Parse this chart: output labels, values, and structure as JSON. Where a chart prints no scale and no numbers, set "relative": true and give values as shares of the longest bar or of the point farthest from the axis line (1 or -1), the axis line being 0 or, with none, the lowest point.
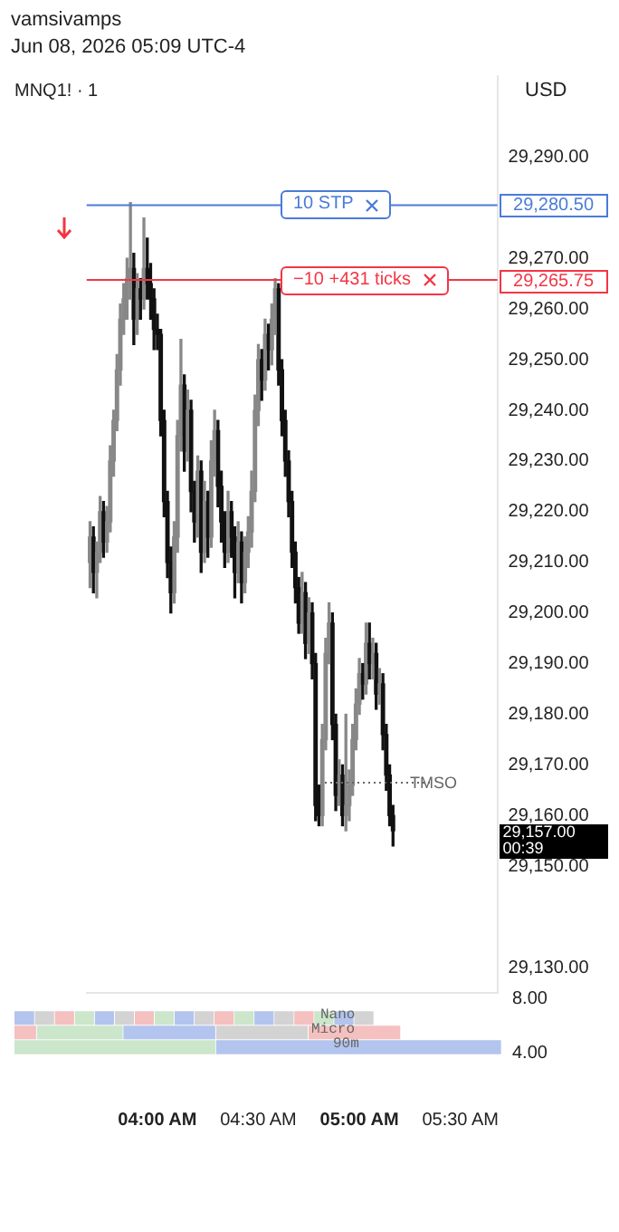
{
  "chart_data": [
    {
      "type": "candlestick",
      "title": "vamsivamps",
      "subtitle": "Jun 08, 2026 05:09 UTC-4",
      "ylabel": "USD",
      "annotations": [
        "MNQ1! · 1",
        "29,280.50",
        "29,265.75",
        "29,157.00",
        "00:39"
      ],
      "x": [
        "2026-06-08T03:40",
        "2026-06-08T03:41",
        "2026-06-08T03:42",
        "2026-06-08T03:43",
        "2026-06-08T03:44",
        "2026-06-08T03:45",
        "2026-06-08T03:46",
        "2026-06-08T03:47",
        "2026-06-08T03:48",
        "2026-06-08T03:49",
        "2026-06-08T03:50",
        "2026-06-08T03:51",
        "2026-06-08T03:52",
        "2026-06-08T03:53",
        "2026-06-08T03:54",
        "2026-06-08T03:55",
        "2026-06-08T03:56",
        "2026-06-08T03:57",
        "2026-06-08T03:58",
        "2026-06-08T03:59",
        "2026-06-08T04:00",
        "2026-06-08T04:01",
        "2026-06-08T04:02",
        "2026-06-08T04:03",
        "2026-06-08T04:04",
        "2026-06-08T04:05",
        "2026-06-08T04:06",
        "2026-06-08T04:07",
        "2026-06-08T04:08",
        "2026-06-08T04:09",
        "2026-06-08T04:10",
        "2026-06-08T04:11",
        "2026-06-08T04:12",
        "2026-06-08T04:13",
        "2026-06-08T04:14",
        "2026-06-08T04:15",
        "2026-06-08T04:16",
        "2026-06-08T04:17",
        "2026-06-08T04:18",
        "2026-06-08T04:19",
        "2026-06-08T04:20",
        "2026-06-08T04:21",
        "2026-06-08T04:22",
        "2026-06-08T04:23",
        "2026-06-08T04:24",
        "2026-06-08T04:25",
        "2026-06-08T04:26",
        "2026-06-08T04:27",
        "2026-06-08T04:28",
        "2026-06-08T04:29",
        "2026-06-08T04:30",
        "2026-06-08T04:31",
        "2026-06-08T04:32",
        "2026-06-08T04:33",
        "2026-06-08T04:34",
        "2026-06-08T04:35",
        "2026-06-08T04:36",
        "2026-06-08T04:37",
        "2026-06-08T04:38",
        "2026-06-08T04:39",
        "2026-06-08T04:40",
        "2026-06-08T04:41",
        "2026-06-08T04:42",
        "2026-06-08T04:43",
        "2026-06-08T04:44",
        "2026-06-08T04:45",
        "2026-06-08T04:46",
        "2026-06-08T04:47",
        "2026-06-08T04:48",
        "2026-06-08T04:49",
        "2026-06-08T04:50",
        "2026-06-08T04:51",
        "2026-06-08T04:52",
        "2026-06-08T04:53",
        "2026-06-08T04:54",
        "2026-06-08T04:55",
        "2026-06-08T04:56",
        "2026-06-08T04:57",
        "2026-06-08T04:58",
        "2026-06-08T04:59",
        "2026-06-08T05:00",
        "2026-06-08T05:01",
        "2026-06-08T05:02",
        "2026-06-08T05:03",
        "2026-06-08T05:04",
        "2026-06-08T05:05",
        "2026-06-08T05:06",
        "2026-06-08T05:07",
        "2026-06-08T05:08",
        "2026-06-08T05:09",
        "2026-06-08T05:10"
      ],
      "ohlc": [
        [
          29210,
          29218,
          29205,
          29215
        ],
        [
          29215,
          29217,
          29204,
          29208
        ],
        [
          29208,
          29214,
          29203,
          29212
        ],
        [
          29212,
          29223,
          29210,
          29220
        ],
        [
          29220,
          29222,
          29211,
          29214
        ],
        [
          29214,
          29221,
          29212,
          29218
        ],
        [
          29218,
          29233,
          29216,
          29230
        ],
        [
          29230,
          29240,
          29227,
          29238
        ],
        [
          29238,
          29251,
          29236,
          29248
        ],
        [
          29248,
          29261,
          29245,
          29258
        ],
        [
          29258,
          29265,
          29255,
          29262
        ],
        [
          29262,
          29270,
          29258,
          29266
        ],
        [
          29266,
          29281,
          29262,
          29268
        ],
        [
          29268,
          29271,
          29253,
          29258
        ],
        [
          29258,
          29267,
          29255,
          29264
        ],
        [
          29264,
          29266,
          29258,
          29262
        ],
        [
          29262,
          29278,
          29260,
          29268
        ],
        [
          29268,
          29274,
          29262,
          29265
        ],
        [
          29265,
          29269,
          29258,
          29262
        ],
        [
          29262,
          29264,
          29252,
          29256
        ],
        [
          29256,
          29259,
          29252,
          29255
        ],
        [
          29255,
          29256,
          29235,
          29238
        ],
        [
          29238,
          29240,
          29219,
          29222
        ],
        [
          29222,
          29224,
          29207,
          29210
        ],
        [
          29210,
          29213,
          29200,
          29204
        ],
        [
          29204,
          29218,
          29202,
          29215
        ],
        [
          29215,
          29238,
          29212,
          29235
        ],
        [
          29235,
          29254,
          29232,
          29245
        ],
        [
          29245,
          29247,
          29228,
          29232
        ],
        [
          29232,
          29244,
          29230,
          29240
        ],
        [
          29240,
          29242,
          29220,
          29224
        ],
        [
          29224,
          29226,
          29214,
          29218
        ],
        [
          29218,
          29231,
          29215,
          29228
        ],
        [
          29228,
          29230,
          29208,
          29212
        ],
        [
          29212,
          29226,
          29210,
          29222
        ],
        [
          29222,
          29224,
          29211,
          29215
        ],
        [
          29215,
          29234,
          29213,
          29230
        ],
        [
          29230,
          29240,
          29227,
          29236
        ],
        [
          29236,
          29238,
          29221,
          29225
        ],
        [
          29225,
          29228,
          29214,
          29218
        ],
        [
          29218,
          29220,
          29209,
          29212
        ],
        [
          29212,
          29224,
          29210,
          29220
        ],
        [
          29220,
          29222,
          29211,
          29215
        ],
        [
          29215,
          29217,
          29203,
          29208
        ],
        [
          29208,
          29218,
          29206,
          29214
        ],
        [
          29214,
          29216,
          29202,
          29206
        ],
        [
          29206,
          29215,
          29204,
          29212
        ],
        [
          29212,
          29219,
          29209,
          29216
        ],
        [
          29216,
          29228,
          29213,
          29224
        ],
        [
          29224,
          29243,
          29222,
          29240
        ],
        [
          29240,
          29253,
          29237,
          29250
        ],
        [
          29250,
          29252,
          29242,
          29246
        ],
        [
          29246,
          29258,
          29244,
          29255
        ],
        [
          29255,
          29257,
          29248,
          29252
        ],
        [
          29252,
          29261,
          29249,
          29258
        ],
        [
          29258,
          29266,
          29255,
          29264
        ],
        [
          29264,
          29265,
          29245,
          29248
        ],
        [
          29248,
          29250,
          29235,
          29238
        ],
        [
          29238,
          29240,
          29227,
          29230
        ],
        [
          29230,
          29232,
          29219,
          29222
        ],
        [
          29222,
          29224,
          29209,
          29212
        ],
        [
          29212,
          29214,
          29202,
          29205
        ],
        [
          29205,
          29207,
          29196,
          29198
        ],
        [
          29198,
          29208,
          29196,
          29204
        ],
        [
          29204,
          29206,
          29191,
          29194
        ],
        [
          29194,
          29203,
          29192,
          29200
        ],
        [
          29200,
          29202,
          29187,
          29190
        ],
        [
          29190,
          29192,
          29159,
          29162
        ],
        [
          29162,
          29166,
          29158,
          29160
        ],
        [
          29160,
          29178,
          29158,
          29175
        ],
        [
          29175,
          29195,
          29173,
          29192
        ],
        [
          29192,
          29202,
          29190,
          29198
        ],
        [
          29198,
          29200,
          29175,
          29178
        ],
        [
          29178,
          29180,
          29161,
          29164
        ],
        [
          29164,
          29171,
          29162,
          29168
        ],
        [
          29168,
          29170,
          29158,
          29160
        ],
        [
          29160,
          29180,
          29157,
          29162
        ],
        [
          29162,
          29169,
          29159,
          29166
        ],
        [
          29166,
          29178,
          29164,
          29175
        ],
        [
          29175,
          29185,
          29173,
          29182
        ],
        [
          29182,
          29191,
          29180,
          29188
        ],
        [
          29188,
          29190,
          29183,
          29186
        ],
        [
          29186,
          29198,
          29184,
          29194
        ],
        [
          29194,
          29198,
          29187,
          29190
        ],
        [
          29190,
          29195,
          29187,
          29192
        ],
        [
          29192,
          29194,
          29181,
          29184
        ],
        [
          29184,
          29189,
          29182,
          29186
        ],
        [
          29186,
          29188,
          29173,
          29176
        ],
        [
          29176,
          29178,
          29165,
          29168
        ],
        [
          29168,
          29170,
          29158,
          29160
        ],
        [
          29160,
          29162,
          29154,
          29157
        ]
      ],
      "colors": [
        "#888888",
        "#111111",
        "#888888",
        "#888888",
        "#111111",
        "#888888",
        "#888888",
        "#888888",
        "#888888",
        "#888888",
        "#888888",
        "#888888",
        "#888888",
        "#111111",
        "#888888",
        "#111111",
        "#888888",
        "#111111",
        "#111111",
        "#111111",
        "#111111",
        "#111111",
        "#111111",
        "#111111",
        "#111111",
        "#888888",
        "#888888",
        "#888888",
        "#111111",
        "#888888",
        "#111111",
        "#111111",
        "#888888",
        "#111111",
        "#888888",
        "#111111",
        "#888888",
        "#888888",
        "#111111",
        "#111111",
        "#111111",
        "#888888",
        "#111111",
        "#111111",
        "#888888",
        "#111111",
        "#888888",
        "#888888",
        "#888888",
        "#888888",
        "#888888",
        "#111111",
        "#888888",
        "#111111",
        "#888888",
        "#888888",
        "#111111",
        "#111111",
        "#111111",
        "#111111",
        "#111111",
        "#111111",
        "#111111",
        "#888888",
        "#111111",
        "#888888",
        "#111111",
        "#111111",
        "#111111",
        "#888888",
        "#888888",
        "#888888",
        "#111111",
        "#111111",
        "#888888",
        "#111111",
        "#888888",
        "#888888",
        "#888888",
        "#888888",
        "#888888",
        "#111111",
        "#888888",
        "#111111",
        "#888888",
        "#111111",
        "#888888",
        "#111111",
        "#111111",
        "#111111",
        "#111111"
      ],
      "xlim": [
        "2026-06-08T03:39",
        "2026-06-08T05:41"
      ],
      "xticks": [
        {
          "value": "2026-06-08T04:00",
          "label": "04:00 AM"
        },
        {
          "value": "2026-06-08T04:30",
          "label": "04:30 AM"
        },
        {
          "value": "2026-06-08T05:00",
          "label": "05:00 AM"
        },
        {
          "value": "2026-06-08T05:30",
          "label": "05:30 AM"
        }
      ],
      "ylim": [
        29125,
        29306
      ],
      "yticks": [
        {
          "value": 29130,
          "label": "29,130.00"
        },
        {
          "value": 29150,
          "label": "29,150.00"
        },
        {
          "value": 29160,
          "label": "29,160.00"
        },
        {
          "value": 29170,
          "label": "29,170.00"
        },
        {
          "value": 29180,
          "label": "29,180.00"
        },
        {
          "value": 29190,
          "label": "29,190.00"
        },
        {
          "value": 29200,
          "label": "29,200.00"
        },
        {
          "value": 29210,
          "label": "29,210.00"
        },
        {
          "value": 29220,
          "label": "29,220.00"
        },
        {
          "value": 29230,
          "label": "29,230.00"
        },
        {
          "value": 29240,
          "label": "29,240.00"
        },
        {
          "value": 29250,
          "label": "29,250.00"
        },
        {
          "value": 29260,
          "label": "29,260.00"
        },
        {
          "value": 29270,
          "label": "29,270.00"
        },
        {
          "value": 29290,
          "label": "29,290.00"
        }
      ],
      "ref_lines": [
        {
          "axis": "y",
          "value": 29280.5,
          "label": "10 STP",
          "color": "#4a7bd8",
          "line_style": "solid"
        },
        {
          "axis": "y",
          "value": 29265.75,
          "label": "−10 +431 ticks",
          "color": "#f23645",
          "line_style": "solid"
        },
        {
          "axis": "y",
          "value": 29166.5,
          "label": "TMSO",
          "color": "#666666",
          "line_style": "dotted"
        }
      ],
      "grid": false
    },
    {
      "type": "bar",
      "orientation": "horizontal",
      "stacked": true,
      "relative": true,
      "categories": [
        null,
        null,
        null
      ],
      "annotations": [
        "Nano",
        "Micro",
        "90m",
        "8.00",
        "4.00"
      ],
      "series": [
        {
          "values": [
            0.041,
            0.045,
            0.413
          ],
          "colors": [
            "#b3c4ee",
            "#f5c0c0",
            "#cbe6cb"
          ]
        },
        {
          "values": [
            0.041,
            0.178,
            0.587
          ],
          "colors": [
            "#d3d3d3",
            "#cbe6cb",
            "#b3c4ee"
          ]
        },
        {
          "values": [
            0.041,
            0.19,
            null
          ],
          "colors": [
            "#f5c0c0",
            "#b3c4ee",
            null
          ]
        },
        {
          "values": [
            0.041,
            0.19,
            null
          ],
          "colors": [
            "#cbe6cb",
            "#d3d3d3",
            null
          ]
        },
        {
          "values": [
            0.041,
            0.19,
            null
          ],
          "colors": [
            "#b3c4ee",
            "#f5c0c0",
            null
          ]
        },
        {
          "values": [
            0.041,
            null,
            null
          ],
          "colors": [
            "#d3d3d3",
            null,
            null
          ]
        },
        {
          "values": [
            0.041,
            null,
            null
          ],
          "colors": [
            "#f5c0c0",
            null,
            null
          ]
        },
        {
          "values": [
            0.041,
            null,
            null
          ],
          "colors": [
            "#cbe6cb",
            null,
            null
          ]
        },
        {
          "values": [
            0.041,
            null,
            null
          ],
          "colors": [
            "#b3c4ee",
            null,
            null
          ]
        },
        {
          "values": [
            0.041,
            null,
            null
          ],
          "colors": [
            "#d3d3d3",
            null,
            null
          ]
        },
        {
          "values": [
            0.041,
            null,
            null
          ],
          "colors": [
            "#f5c0c0",
            null,
            null
          ]
        },
        {
          "values": [
            0.041,
            null,
            null
          ],
          "colors": [
            "#cbe6cb",
            null,
            null
          ]
        },
        {
          "values": [
            0.041,
            null,
            null
          ],
          "colors": [
            "#b3c4ee",
            null,
            null
          ]
        },
        {
          "values": [
            0.041,
            null,
            null
          ],
          "colors": [
            "#d3d3d3",
            null,
            null
          ]
        },
        {
          "values": [
            0.041,
            null,
            null
          ],
          "colors": [
            "#f5c0c0",
            null,
            null
          ]
        },
        {
          "values": [
            0.041,
            null,
            null
          ],
          "colors": [
            "#cbe6cb",
            null,
            null
          ]
        },
        {
          "values": [
            0.041,
            null,
            null
          ],
          "colors": [
            "#b3c4ee",
            null,
            null
          ]
        },
        {
          "values": [
            0.041,
            null,
            null
          ],
          "colors": [
            "#d3d3d3",
            null,
            null
          ]
        }
      ]
    }
  ]
}
